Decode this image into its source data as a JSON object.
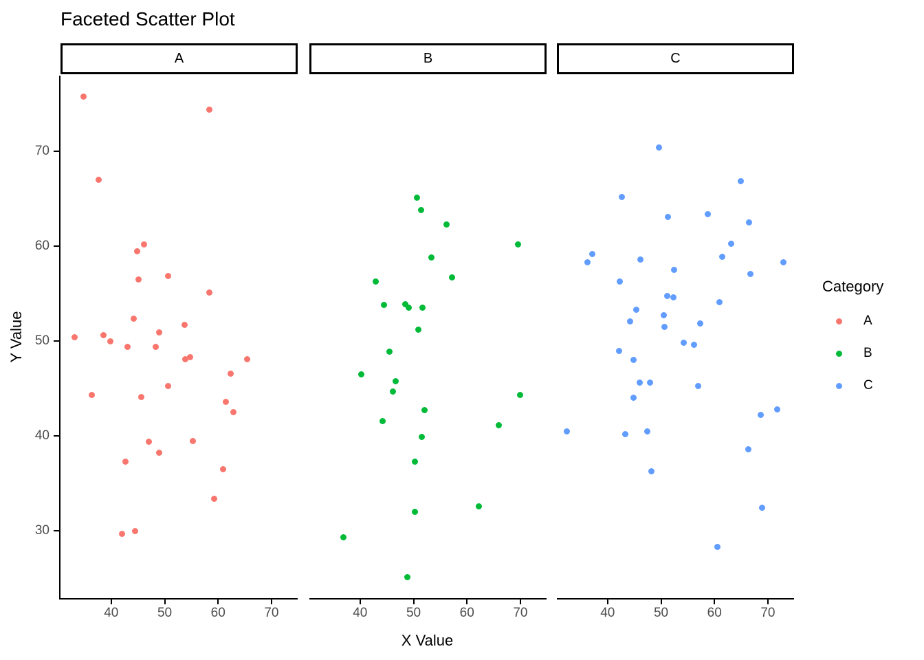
{
  "chart_data": {
    "type": "scatter",
    "title": "Faceted Scatter Plot",
    "xlabel": "X Value",
    "ylabel": "Y Value",
    "legend_title": "Category",
    "legend_position": "right",
    "grid": false,
    "x_ticks": [
      40,
      50,
      60,
      70
    ],
    "y_ticks": [
      30,
      40,
      50,
      60,
      70
    ],
    "x_domain": [
      30.5,
      74.9
    ],
    "y_domain": [
      22.9,
      78.0
    ],
    "facets": [
      {
        "label": "A",
        "color": "#F8766D",
        "points": [
          [
            34.8,
            75.8
          ],
          [
            58.4,
            74.4
          ],
          [
            37.6,
            67.0
          ],
          [
            46.1,
            60.2
          ],
          [
            44.9,
            59.5
          ],
          [
            50.6,
            56.9
          ],
          [
            45.1,
            56.5
          ],
          [
            58.4,
            55.1
          ],
          [
            44.2,
            52.4
          ],
          [
            53.7,
            51.7
          ],
          [
            49.0,
            50.9
          ],
          [
            38.6,
            50.6
          ],
          [
            33.2,
            50.4
          ],
          [
            39.8,
            50.0
          ],
          [
            43.0,
            49.4
          ],
          [
            48.3,
            49.4
          ],
          [
            54.7,
            48.3
          ],
          [
            53.9,
            48.1
          ],
          [
            65.5,
            48.1
          ],
          [
            62.4,
            46.6
          ],
          [
            50.7,
            45.3
          ],
          [
            36.3,
            44.3
          ],
          [
            45.6,
            44.1
          ],
          [
            61.4,
            43.6
          ],
          [
            62.9,
            42.5
          ],
          [
            55.3,
            39.5
          ],
          [
            47.1,
            39.4
          ],
          [
            49.0,
            38.2
          ],
          [
            42.6,
            37.3
          ],
          [
            61.0,
            36.5
          ],
          [
            59.3,
            33.4
          ],
          [
            44.4,
            30.0
          ],
          [
            42.0,
            29.7
          ]
        ]
      },
      {
        "label": "B",
        "color": "#00BA38",
        "points": [
          [
            50.7,
            65.1
          ],
          [
            51.4,
            63.8
          ],
          [
            56.2,
            62.3
          ],
          [
            69.5,
            60.2
          ],
          [
            53.3,
            58.8
          ],
          [
            57.2,
            56.7
          ],
          [
            42.9,
            56.3
          ],
          [
            48.4,
            53.9
          ],
          [
            44.4,
            53.8
          ],
          [
            49.1,
            53.5
          ],
          [
            51.7,
            53.5
          ],
          [
            50.9,
            51.2
          ],
          [
            45.5,
            48.9
          ],
          [
            40.2,
            46.5
          ],
          [
            46.6,
            45.8
          ],
          [
            46.2,
            44.7
          ],
          [
            70.0,
            44.3
          ],
          [
            52.1,
            42.7
          ],
          [
            44.2,
            41.6
          ],
          [
            66.0,
            41.1
          ],
          [
            51.6,
            39.9
          ],
          [
            50.2,
            37.3
          ],
          [
            62.2,
            32.6
          ],
          [
            50.2,
            32.0
          ],
          [
            36.9,
            29.3
          ],
          [
            48.9,
            25.1
          ]
        ]
      },
      {
        "label": "C",
        "color": "#619CFF",
        "points": [
          [
            49.6,
            70.4
          ],
          [
            64.9,
            66.9
          ],
          [
            42.7,
            65.2
          ],
          [
            58.8,
            63.4
          ],
          [
            51.3,
            63.1
          ],
          [
            66.5,
            62.5
          ],
          [
            63.1,
            60.3
          ],
          [
            37.1,
            59.2
          ],
          [
            61.5,
            58.9
          ],
          [
            46.2,
            58.6
          ],
          [
            36.2,
            58.3
          ],
          [
            72.9,
            58.3
          ],
          [
            52.5,
            57.5
          ],
          [
            66.7,
            57.1
          ],
          [
            42.3,
            56.3
          ],
          [
            51.2,
            54.8
          ],
          [
            52.3,
            54.6
          ],
          [
            61.0,
            54.1
          ],
          [
            45.3,
            53.3
          ],
          [
            50.5,
            52.7
          ],
          [
            44.2,
            52.1
          ],
          [
            57.3,
            51.9
          ],
          [
            50.7,
            51.5
          ],
          [
            54.3,
            49.8
          ],
          [
            56.2,
            49.6
          ],
          [
            42.2,
            49.0
          ],
          [
            44.8,
            48.0
          ],
          [
            46.0,
            45.6
          ],
          [
            47.9,
            45.6
          ],
          [
            56.9,
            45.3
          ],
          [
            44.9,
            44.0
          ],
          [
            71.8,
            42.8
          ],
          [
            68.7,
            42.2
          ],
          [
            32.4,
            40.5
          ],
          [
            47.4,
            40.5
          ],
          [
            43.3,
            40.2
          ],
          [
            66.4,
            38.6
          ],
          [
            48.2,
            36.3
          ],
          [
            68.9,
            32.4
          ],
          [
            60.6,
            28.3
          ]
        ]
      }
    ]
  }
}
